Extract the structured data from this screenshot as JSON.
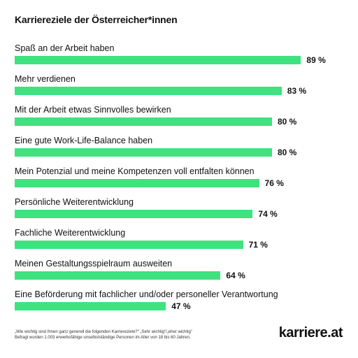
{
  "title": "Karriereziele der Österreicher*innen",
  "colors": {
    "bar": "#3ee27f",
    "text": "#111111"
  },
  "chart_data": {
    "type": "bar",
    "orientation": "horizontal",
    "title": "Karriereziele der Österreicher*innen",
    "categories": [
      "Spaß an der Arbeit haben",
      "Mehr verdienen",
      "Mit der Arbeit etwas Sinnvolles bewirken",
      "Eine gute Work-Life-Balance haben",
      "Mein Potenzial und meine Kompetenzen voll entfalten können",
      "Persönliche Weiterentwicklung",
      "Fachliche Weiterentwicklung",
      "Meinen Gestaltungsspielraum ausweiten",
      "Eine Beförderung mit fachlicher und/oder personeller Verantwortung"
    ],
    "values": [
      89,
      83,
      80,
      80,
      76,
      74,
      71,
      64,
      47
    ],
    "value_labels": [
      "89 %",
      "83 %",
      "80 %",
      "80 %",
      "76 %",
      "74 %",
      "71 %",
      "64 %",
      "47 %"
    ],
    "unit": "%",
    "xlim": [
      0,
      100
    ],
    "grid": false,
    "legend": "none"
  },
  "footnote": {
    "line1": "„Wie wichtig sind Ihnen ganz generell die folgenden Karriereziele?“ „Sehr wichtig“/„eher wichtig“",
    "line2": "Befragt wurden 1.003 erwerbsfähige unselbstständige Personen im Alter von 18 bis 60 Jahren."
  },
  "logo": "karriere.at"
}
